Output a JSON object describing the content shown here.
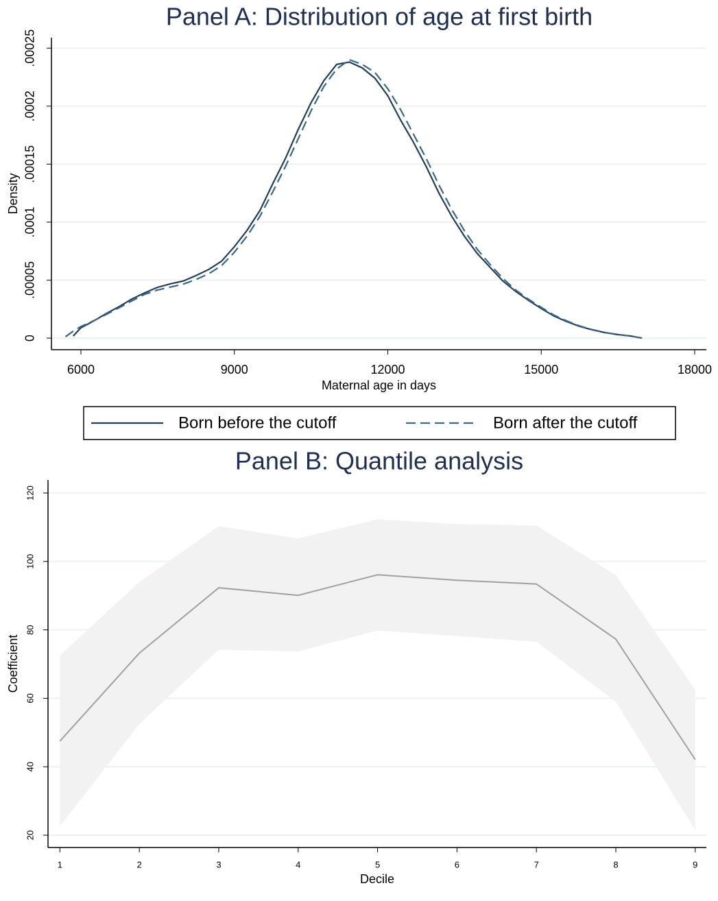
{
  "chart_data": [
    {
      "type": "line",
      "title": "Panel A: Distribution of age at first birth",
      "xlabel": "Maternal age in days",
      "ylabel": "Density",
      "x": [
        5700,
        5850,
        6000,
        6250,
        6500,
        6750,
        7000,
        7250,
        7500,
        7750,
        8000,
        8250,
        8500,
        8750,
        9000,
        9250,
        9500,
        9750,
        10000,
        10250,
        10500,
        10750,
        11000,
        11250,
        11500,
        11750,
        12000,
        12250,
        12500,
        12750,
        13000,
        13250,
        13500,
        13750,
        14000,
        14250,
        14500,
        14750,
        15000,
        15250,
        15500,
        15750,
        16000,
        16250,
        16500,
        16750,
        16970
      ],
      "series": [
        {
          "name": "Born before the cutoff",
          "color": "#1f3d5c",
          "dash": false,
          "values": [
            null,
            1.8e-06,
            8.9e-06,
            1.48e-05,
            2.13e-05,
            2.72e-05,
            3.38e-05,
            3.91e-05,
            4.38e-05,
            4.68e-05,
            4.92e-05,
            5.39e-05,
            5.92e-05,
            6.63e-05,
            7.88e-05,
            9.3e-05,
            0.00011,
            0.000133,
            0.000155,
            0.00018,
            0.000203,
            0.000222,
            0.000236,
            0.000238,
            0.000233,
            0.000224,
            0.000209,
            0.000188,
            0.000169,
            0.000148,
            0.000125,
            0.000105,
            8.77e-05,
            7.29e-05,
            6.1e-05,
            4.92e-05,
            4.03e-05,
            3.26e-05,
            2.55e-05,
            1.9e-05,
            1.42e-05,
            1.01e-05,
            7.1e-06,
            4.7e-06,
            3e-06,
            1.8e-06,
            0
          ]
        },
        {
          "name": "Born after the cutoff",
          "color": "#3b6683",
          "dash": true,
          "values": [
            1.2e-06,
            6e-06,
            1e-05,
            1.5e-05,
            2.05e-05,
            2.62e-05,
            3.22e-05,
            3.78e-05,
            4.15e-05,
            4.4e-05,
            4.65e-05,
            5.05e-05,
            5.55e-05,
            6.25e-05,
            7.4e-05,
            8.8e-05,
            0.000105,
            0.000126,
            0.000148,
            0.000172,
            0.000196,
            0.000217,
            0.000232,
            0.00024,
            0.000236,
            0.000229,
            0.000215,
            0.000197,
            0.000176,
            0.000155,
            0.000132,
            0.000111,
            9.25e-05,
            7.65e-05,
            6.35e-05,
            5.15e-05,
            4.15e-05,
            3.35e-05,
            2.65e-05,
            1.98e-05,
            1.48e-05,
            1.05e-05,
            7.3e-06,
            4.8e-06,
            3.1e-06,
            1.8e-06,
            0
          ]
        }
      ],
      "xlim": [
        5424,
        18228
      ],
      "ylim": [
        -1e-05,
        0.000259
      ],
      "xticks": [
        6000,
        9000,
        12000,
        15000,
        18000
      ],
      "yticks": [
        0,
        {
          "value": 5e-05,
          "label": ".00005"
        },
        {
          "value": 0.0001,
          "label": ".0001"
        },
        {
          "value": 0.00015,
          "label": ".00015"
        },
        {
          "value": 0.0002,
          "label": ".0002"
        },
        {
          "value": 0.00025,
          "label": ".00025"
        }
      ],
      "grid": true,
      "legend": "bottom"
    },
    {
      "type": "line",
      "title": "Panel B: Quantile analysis",
      "xlabel": "Decile",
      "ylabel": "Coefficient",
      "x": [
        1,
        2,
        3,
        4,
        5,
        6,
        7,
        8,
        9
      ],
      "values": [
        47.5,
        73.2,
        92.3,
        90.1,
        96.1,
        94.5,
        93.4,
        77.3,
        42.1
      ],
      "color": "#a0a0a0",
      "upper": [
        72.5,
        94,
        110.3,
        106.7,
        112.3,
        110.9,
        110.5,
        96,
        62.5
      ],
      "lower": [
        22.6,
        52.5,
        74.2,
        73.7,
        79.8,
        78.2,
        76.5,
        59,
        21.5
      ],
      "band_color": "#f2f2f2",
      "xlim": [
        0.85,
        9.14
      ],
      "ylim": [
        16.4,
        123.8
      ],
      "xticks": [
        1,
        2,
        3,
        4,
        5,
        6,
        7,
        8,
        9
      ],
      "yticks": [
        20,
        40,
        60,
        80,
        100,
        120
      ],
      "grid": true
    }
  ]
}
